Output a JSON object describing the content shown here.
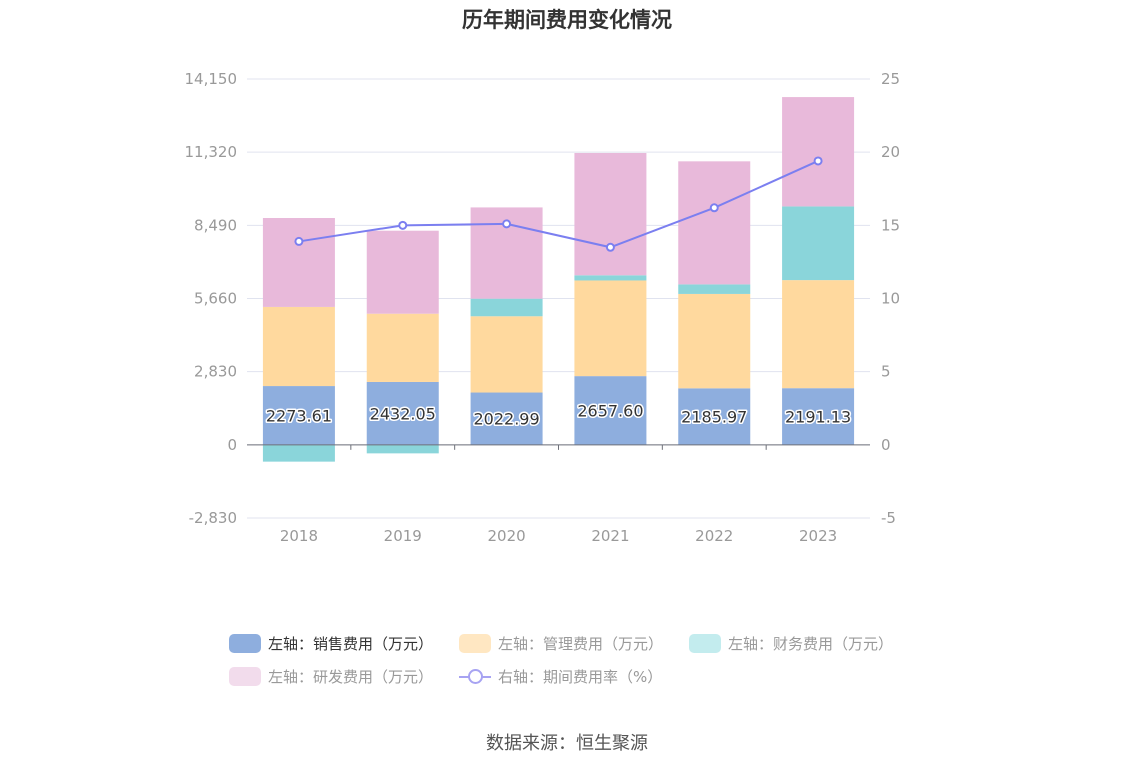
{
  "chart_data": {
    "type": "bar",
    "title": "历年期间费用变化情况",
    "categories": [
      "2018",
      "2019",
      "2020",
      "2021",
      "2022",
      "2023"
    ],
    "left_axis": {
      "ylim": [
        -2830,
        14150
      ],
      "ticks": [
        "14,150",
        "11,320",
        "8,490",
        "5,660",
        "2,830",
        "0",
        "-2,830"
      ]
    },
    "right_axis": {
      "ylim": [
        -5,
        25
      ],
      "ticks": [
        "25",
        "20",
        "15",
        "10",
        "5",
        "0",
        "-5"
      ]
    },
    "grid": true,
    "legend_position": "bottom",
    "series": [
      {
        "name": "左轴：销售费用（万元）",
        "type": "bar",
        "axis": "left",
        "color": "#8eaede",
        "values": [
          2273.61,
          2432.05,
          2022.99,
          2657.6,
          2185.97,
          2191.13
        ],
        "labels": [
          "2273.61",
          "2432.05",
          "2022.99",
          "2657.60",
          "2185.97",
          "2191.13"
        ]
      },
      {
        "name": "左轴：管理费用（万元）",
        "type": "bar",
        "axis": "left",
        "color": "#ffd99e",
        "values": [
          3060,
          2640,
          2950,
          3700,
          3650,
          4180
        ]
      },
      {
        "name": "左轴：财务费用（万元）",
        "type": "bar",
        "axis": "left",
        "color": "#8ad5da",
        "values": [
          -650,
          -330,
          680,
          200,
          370,
          2850
        ]
      },
      {
        "name": "左轴：研发费用（万元）",
        "type": "bar",
        "axis": "left",
        "color": "#e8b9da",
        "values": [
          3440,
          3210,
          3530,
          4730,
          4760,
          4230
        ]
      },
      {
        "name": "右轴：期间费用率（%）",
        "type": "line",
        "axis": "right",
        "color": "#7b7ff0",
        "values": [
          13.9,
          15.0,
          15.1,
          13.5,
          16.2,
          19.4
        ]
      }
    ]
  },
  "legend": [
    {
      "label": "左轴：销售费用（万元）",
      "color": "#8eaede",
      "text_color": "#333333"
    },
    {
      "label": "左轴：管理费用（万元）",
      "color": "#ffe7c2",
      "text_color": "#999999"
    },
    {
      "label": "左轴：财务费用（万元）",
      "color": "#c3ecee",
      "text_color": "#999999"
    },
    {
      "label": "左轴：研发费用（万元）",
      "color": "#f2dcec",
      "text_color": "#999999"
    },
    {
      "label": "右轴：期间费用率（%）",
      "color": "#a7a3f2",
      "text_color": "#999999"
    }
  ],
  "source": "数据来源：恒生聚源"
}
